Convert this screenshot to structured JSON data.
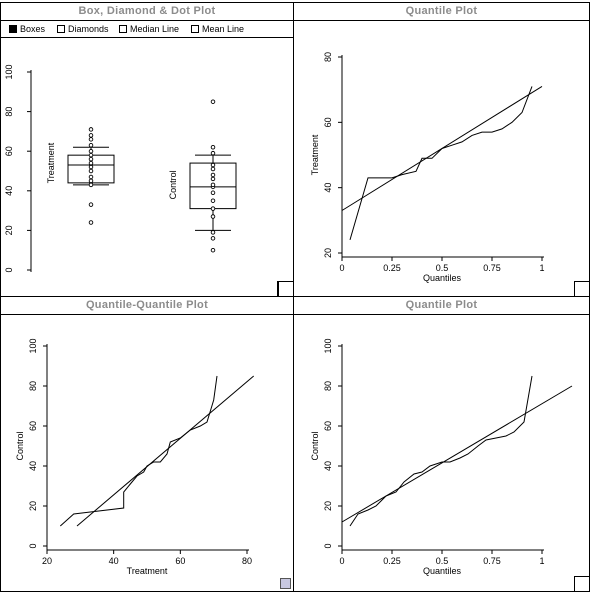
{
  "panels": {
    "box": {
      "title": "Box, Diamond & Dot Plot",
      "legend": [
        {
          "label": "Boxes",
          "checked": true
        },
        {
          "label": "Diamonds",
          "checked": false
        },
        {
          "label": "Median Line",
          "checked": false
        },
        {
          "label": "Mean Line",
          "checked": false
        }
      ]
    },
    "quantile1": {
      "title": "Quantile Plot"
    },
    "qq": {
      "title": "Quantile-Quantile Plot"
    },
    "quantile2": {
      "title": "Quantile Plot"
    }
  },
  "chart_data": [
    {
      "type": "box",
      "title": "Box, Diamond & Dot Plot",
      "ylim": [
        0,
        100
      ],
      "yticks": [
        0,
        20,
        40,
        60,
        80,
        100
      ],
      "groups": [
        {
          "name": "Treatment",
          "whisker_low": 43,
          "q1": 44,
          "median": 53,
          "q3": 58,
          "whisker_high": 62,
          "points": [
            24,
            33,
            43,
            45,
            47,
            50,
            52,
            54,
            56,
            58,
            60,
            63,
            66,
            68,
            71
          ]
        },
        {
          "name": "Control",
          "whisker_low": 20,
          "q1": 31,
          "median": 42,
          "q3": 54,
          "whisker_high": 58,
          "points": [
            10,
            16,
            19,
            27,
            31,
            35,
            39,
            42,
            43,
            46,
            48,
            51,
            53,
            59,
            62,
            85
          ]
        }
      ]
    },
    {
      "type": "line",
      "title": "Quantile Plot",
      "xlabel": "Quantiles",
      "ylabel": "Treatment",
      "xlim": [
        0,
        1
      ],
      "ylim": [
        20,
        80
      ],
      "xticks": [
        0,
        0.25,
        0.5,
        0.75,
        1
      ],
      "xtick_labels": [
        "0",
        "0.25",
        "0.5",
        "0.75",
        "1"
      ],
      "yticks": [
        20,
        40,
        60,
        80
      ],
      "series": [
        {
          "x": [
            0.04,
            0.13,
            0.2,
            0.25,
            0.3,
            0.37,
            0.4,
            0.45,
            0.5,
            0.55,
            0.6,
            0.65,
            0.7,
            0.75,
            0.8,
            0.85,
            0.9,
            0.95
          ],
          "y": [
            24,
            43,
            43,
            43,
            44,
            45,
            49,
            49,
            52,
            53,
            54,
            56,
            57,
            57,
            58,
            60,
            63,
            71
          ]
        },
        {
          "x": [
            0,
            1
          ],
          "y": [
            33,
            71
          ]
        }
      ]
    },
    {
      "type": "line",
      "title": "Quantile-Quantile Plot",
      "xlabel": "Treatment",
      "ylabel": "Control",
      "xlim": [
        20,
        80
      ],
      "ylim": [
        0,
        100
      ],
      "xticks": [
        20,
        40,
        60,
        80
      ],
      "yticks": [
        0,
        20,
        40,
        60,
        80,
        100
      ],
      "series": [
        {
          "x": [
            24,
            28,
            33,
            43,
            43,
            45,
            47,
            49,
            50,
            52,
            54,
            56,
            57,
            60,
            63,
            66,
            68,
            70,
            71
          ],
          "y": [
            10,
            16,
            17,
            19,
            27,
            31,
            35,
            37,
            40,
            42,
            42,
            46,
            52,
            54,
            58,
            60,
            62,
            73,
            85
          ]
        },
        {
          "x": [
            29,
            82
          ],
          "y": [
            10,
            85
          ]
        }
      ]
    },
    {
      "type": "line",
      "title": "Quantile Plot",
      "xlabel": "Quantiles",
      "ylabel": "Control",
      "xlim": [
        0,
        1
      ],
      "ylim": [
        0,
        100
      ],
      "xticks": [
        0,
        0.25,
        0.5,
        0.75,
        1
      ],
      "xtick_labels": [
        "0",
        "0.25",
        "0.5",
        "0.75",
        "1"
      ],
      "yticks": [
        0,
        20,
        40,
        60,
        80,
        100
      ],
      "series": [
        {
          "x": [
            0.04,
            0.08,
            0.13,
            0.17,
            0.22,
            0.27,
            0.31,
            0.36,
            0.4,
            0.44,
            0.5,
            0.54,
            0.59,
            0.63,
            0.68,
            0.72,
            0.77,
            0.82,
            0.86,
            0.91,
            0.95
          ],
          "y": [
            10,
            16,
            18,
            20,
            25,
            27,
            32,
            36,
            37,
            40,
            42,
            42,
            44,
            46,
            50,
            53,
            54,
            55,
            57,
            62,
            85
          ]
        },
        {
          "x": [
            0,
            1.15
          ],
          "y": [
            12,
            80
          ]
        }
      ]
    }
  ]
}
